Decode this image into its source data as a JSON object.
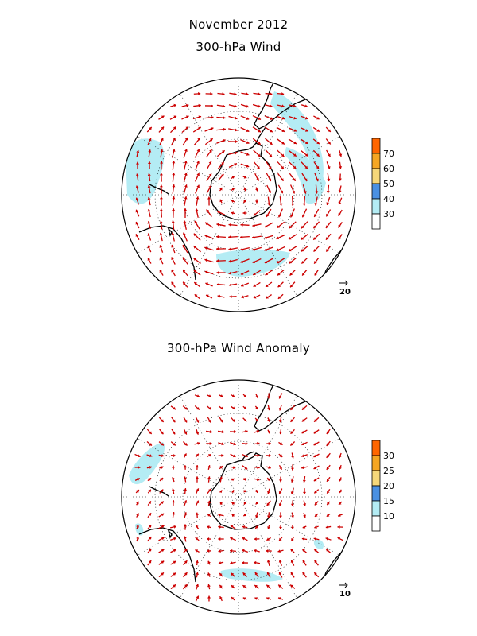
{
  "page": {
    "month_title": "November 2012"
  },
  "panels": [
    {
      "id": "mean",
      "subtitle": "300-hPa Wind",
      "colorbar": {
        "labels": [
          "30",
          "40",
          "50",
          "60",
          "70"
        ],
        "colors": [
          "#ffffff",
          "#b4ecf4",
          "#4a90e2",
          "#f5d77a",
          "#f5a623",
          "#ff6600"
        ]
      },
      "reference_vector_label": "20"
    },
    {
      "id": "anomaly",
      "subtitle": "300-hPa Wind Anomaly",
      "colorbar": {
        "labels": [
          "10",
          "15",
          "20",
          "25",
          "30"
        ],
        "colors": [
          "#ffffff",
          "#b4ecf4",
          "#4a90e2",
          "#f5d77a",
          "#f5a623",
          "#ff6600"
        ]
      },
      "reference_vector_label": "10"
    }
  ],
  "style": {
    "arrow_color": "#cc0000",
    "shade_color": "#b4ecf4",
    "grid_color": "#000000",
    "coast_color": "#000000"
  }
}
